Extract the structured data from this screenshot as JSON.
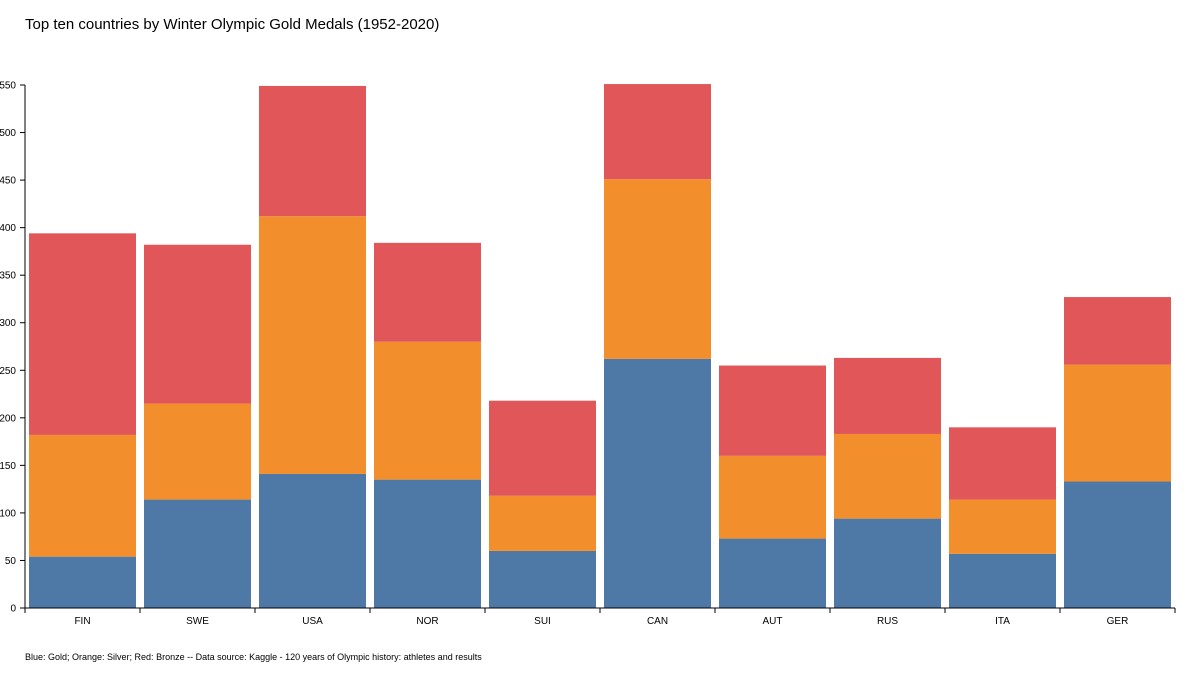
{
  "chart_data": {
    "type": "bar",
    "stacked": true,
    "title": "Top ten countries by Winter Olympic Gold Medals (1952-2020)",
    "caption": "Blue: Gold; Orange: Silver; Red: Bronze -- Data source: Kaggle - 120 years of Olympic history: athletes and results",
    "categories": [
      "FIN",
      "SWE",
      "USA",
      "NOR",
      "SUI",
      "CAN",
      "AUT",
      "RUS",
      "ITA",
      "GER"
    ],
    "series": [
      {
        "values": [
          54,
          114,
          141,
          135,
          60,
          262,
          73,
          94,
          57,
          133
        ],
        "color": "#4e79a7"
      },
      {
        "values": [
          128,
          101,
          271,
          145,
          58,
          189,
          87,
          89,
          57,
          123
        ],
        "color": "#f28e2c"
      },
      {
        "values": [
          212,
          167,
          137,
          104,
          100,
          100,
          95,
          80,
          76,
          71
        ],
        "color": "#e15759"
      }
    ],
    "ylim": [
      0,
      550
    ],
    "yticks": [
      0,
      50,
      100,
      150,
      200,
      250,
      300,
      350,
      400,
      450,
      500,
      550
    ],
    "xlabel": "",
    "ylabel": "",
    "legend": "none",
    "grid": false
  }
}
